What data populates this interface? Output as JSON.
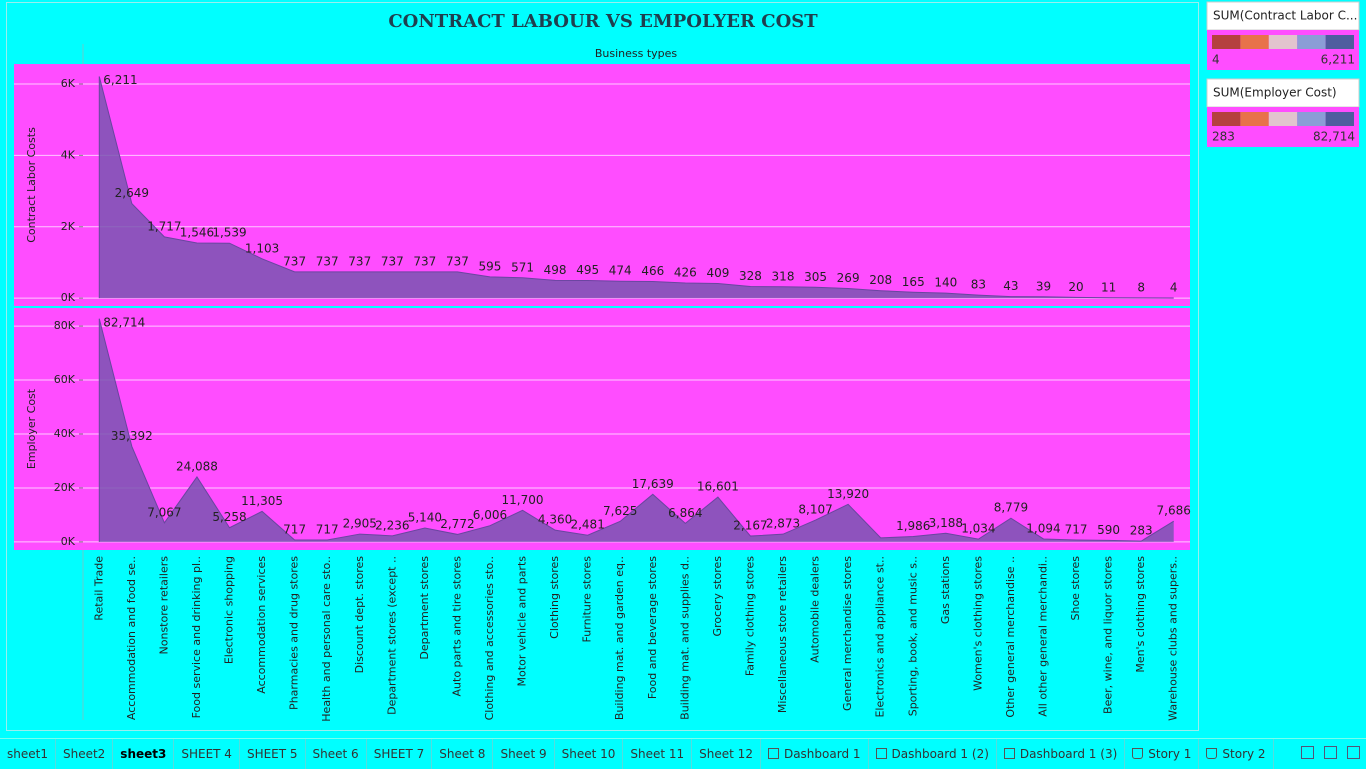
{
  "title": "CONTRACT LABOUR VS EMPOLYER COST",
  "header": "Business types",
  "chart_data": {
    "type": "area",
    "categories": [
      "Retail Trade",
      "Accommodation and food se..",
      "Nonstore retailers",
      "Food service and drinking pl..",
      "Electronic shopping",
      "Accommodation services",
      "Pharmacies and drug stores",
      "Health and personal care sto..",
      "Discount dept. stores",
      "Department stores (except ..",
      "Department stores",
      "Auto parts and tire stores",
      "Clothing and accessories sto..",
      "Motor vehicle and parts",
      "Clothing stores",
      "Furniture stores",
      "Building mat. and garden eq..",
      "Food and beverage stores",
      "Building mat. and supplies d..",
      "Grocery stores",
      "Family clothing stores",
      "Miscellaneous store retailers",
      "Automobile dealers",
      "General merchandise stores",
      "Electronics and appliance st..",
      "Sporting, book, and music s..",
      "Gas stations",
      "Women's clothing stores",
      "Other general merchandise ..",
      "All other general merchandi..",
      "Shoe stores",
      "Beer, wine, and liquor stores",
      "Men's clothing stores",
      "Warehouse clubs and supers.."
    ],
    "series": [
      {
        "name": "Contract Labor Costs",
        "color": "#7a55b2",
        "values": [
          6211,
          2649,
          1717,
          1546,
          1539,
          1103,
          737,
          737,
          737,
          737,
          737,
          737,
          595,
          571,
          498,
          495,
          474,
          466,
          426,
          409,
          328,
          318,
          305,
          269,
          208,
          165,
          140,
          83,
          43,
          39,
          20,
          11,
          8,
          4
        ],
        "value_labels": [
          "6,211",
          "2,649",
          "1,717",
          "1,546",
          "1,539",
          "1,103",
          "737",
          "737",
          "737",
          "737",
          "737",
          "737",
          "595",
          "571",
          "498",
          "495",
          "474",
          "466",
          "426",
          "409",
          "328",
          "318",
          "305",
          "269",
          "208",
          "165",
          "140",
          "83",
          "43",
          "39",
          "20",
          "11",
          "8",
          "4"
        ],
        "ylim": [
          -220,
          6560
        ],
        "yticks": [
          {
            "value": 0,
            "label": "0K"
          },
          {
            "value": 2000,
            "label": "2K"
          },
          {
            "value": 4000,
            "label": "4K"
          },
          {
            "value": 6000,
            "label": "6K"
          }
        ]
      },
      {
        "name": "Employer Cost",
        "color": "#7a55b2",
        "values": [
          82714,
          35392,
          7067,
          24088,
          5258,
          11305,
          717,
          717,
          2905,
          2236,
          5140,
          2772,
          6006,
          11700,
          4360,
          2481,
          7625,
          17639,
          6864,
          16601,
          2167,
          2873,
          8107,
          13920,
          1500,
          1986,
          3188,
          1034,
          8779,
          1094,
          717,
          590,
          283,
          7686
        ],
        "value_labels": [
          "82,714",
          "35,392",
          "7,067",
          "24,088",
          "5,258",
          "11,305",
          "717",
          "717",
          "2,905",
          "2,236",
          "5,140",
          "2,772",
          "6,006",
          "11,700",
          "4,360",
          "2,481",
          "7,625",
          "17,639",
          "6,864",
          "16,601",
          "2,167",
          "2,873",
          "8,107",
          "13,920",
          null,
          "1,986",
          "3,188",
          "1,034",
          "8,779",
          "1,094",
          "717",
          "590",
          "283",
          "7,686"
        ],
        "ylim": [
          -3000,
          86700
        ],
        "yticks": [
          {
            "value": 0,
            "label": "0K"
          },
          {
            "value": 20000,
            "label": "20K"
          },
          {
            "value": 40000,
            "label": "40K"
          },
          {
            "value": 60000,
            "label": "60K"
          },
          {
            "value": 80000,
            "label": "80K"
          }
        ]
      }
    ],
    "grid": true
  },
  "legends": [
    {
      "title": "SUM(Contract Labor C...",
      "colors": [
        "#b5403f",
        "#e8724a",
        "#e2c4ce",
        "#8b9dd6",
        "#4f5d9f"
      ],
      "min": 4,
      "max": {
        "value": 6211,
        "label": "6,211"
      }
    },
    {
      "title": "SUM(Employer Cost)",
      "colors": [
        "#b5403f",
        "#e8724a",
        "#e2c4ce",
        "#8b9dd6",
        "#4f5d9f"
      ],
      "min": 283,
      "max": {
        "value": 82714,
        "label": "82,714"
      }
    }
  ],
  "tabs": [
    {
      "label": "sheet1"
    },
    {
      "label": "Sheet2"
    },
    {
      "label": "sheet3",
      "active": true
    },
    {
      "label": "SHEET 4"
    },
    {
      "label": "SHEET 5"
    },
    {
      "label": "Sheet 6"
    },
    {
      "label": "SHEET 7"
    },
    {
      "label": "Sheet 8"
    },
    {
      "label": "Sheet 9"
    },
    {
      "label": "Sheet 10"
    },
    {
      "label": "Sheet 11"
    },
    {
      "label": "Sheet 12"
    },
    {
      "label": "Dashboard 1",
      "kind": "dashboard"
    },
    {
      "label": "Dashboard 1 (2)",
      "kind": "dashboard"
    },
    {
      "label": "Dashboard 1 (3)",
      "kind": "dashboard"
    },
    {
      "label": "Story 1",
      "kind": "story"
    },
    {
      "label": "Story 2",
      "kind": "story"
    }
  ]
}
